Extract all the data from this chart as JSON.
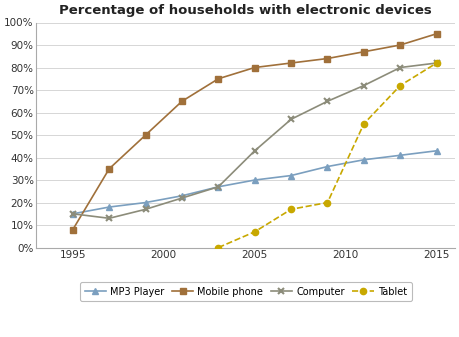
{
  "title": "Percentage of households with electronic devices",
  "years_all": [
    1995,
    1997,
    1999,
    2001,
    2003,
    2005,
    2007,
    2009,
    2011,
    2013,
    2015
  ],
  "mp3": [
    15,
    18,
    20,
    23,
    27,
    30,
    32,
    36,
    39,
    41,
    43
  ],
  "mobile": [
    8,
    35,
    50,
    65,
    75,
    80,
    82,
    84,
    87,
    90,
    95
  ],
  "computer": [
    15,
    13,
    17,
    22,
    27,
    43,
    57,
    65,
    72,
    80,
    82
  ],
  "tablet_years": [
    2003,
    2005,
    2007,
    2009,
    2011,
    2013,
    2015
  ],
  "tablet_vals": [
    0,
    7,
    17,
    20,
    55,
    72,
    82
  ],
  "ylim": [
    0,
    100
  ],
  "xlim": [
    1993,
    2016
  ],
  "xticks": [
    1995,
    2000,
    2005,
    2010,
    2015
  ],
  "yticks": [
    0,
    10,
    20,
    30,
    40,
    50,
    60,
    70,
    80,
    90,
    100
  ],
  "mp3_color": "#7b9fbf",
  "mobile_color": "#a0703a",
  "computer_color": "#8c8c7a",
  "tablet_color": "#c8a800",
  "legend_labels": [
    "MP3 Player",
    "Mobile phone",
    "Computer",
    "Tablet"
  ],
  "bg_color": "#ffffff",
  "grid_color": "#d0d0d0"
}
